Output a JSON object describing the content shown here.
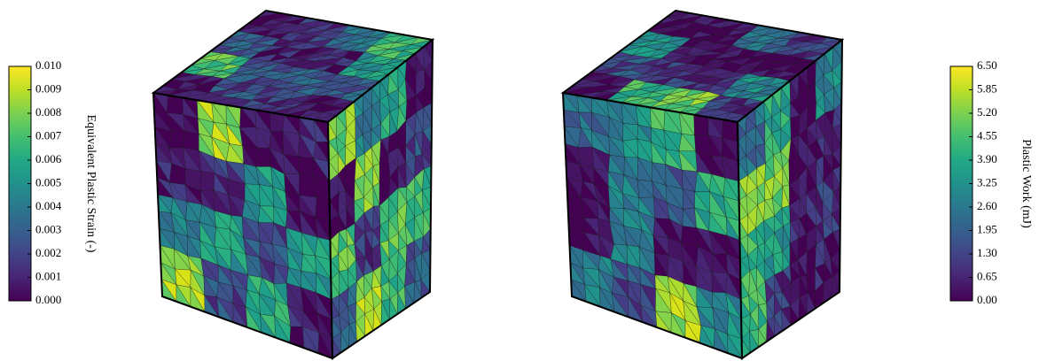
{
  "colorbars": [
    {
      "label": "Equivalent Plastic Strain (-)",
      "lim": [
        0,
        0.01
      ],
      "ticks": [
        {
          "value": 0.01,
          "label": "0.010"
        },
        {
          "value": 0.009,
          "label": "0.009"
        },
        {
          "value": 0.008,
          "label": "0.008"
        },
        {
          "value": 0.007,
          "label": "0.007"
        },
        {
          "value": 0.006,
          "label": "0.006"
        },
        {
          "value": 0.005,
          "label": "0.005"
        },
        {
          "value": 0.004,
          "label": "0.004"
        },
        {
          "value": 0.003,
          "label": "0.003"
        },
        {
          "value": 0.002,
          "label": "0.002"
        },
        {
          "value": 0.001,
          "label": "0.001"
        },
        {
          "value": 0,
          "label": "0.000"
        }
      ]
    },
    {
      "label": "Plastic Work (mJ)",
      "lim": [
        0,
        6.5
      ],
      "ticks": [
        {
          "value": 6.5,
          "label": "6.50"
        },
        5.85,
        {
          "value": 5.2,
          "label": "5.20"
        },
        4.55,
        {
          "value": 3.9,
          "label": "3.90"
        },
        3.25,
        {
          "value": 2.6,
          "label": "2.60"
        },
        1.95,
        {
          "value": 1.3,
          "label": "1.30"
        },
        0.65,
        {
          "value": 0,
          "label": "0.00"
        }
      ]
    }
  ]
}
